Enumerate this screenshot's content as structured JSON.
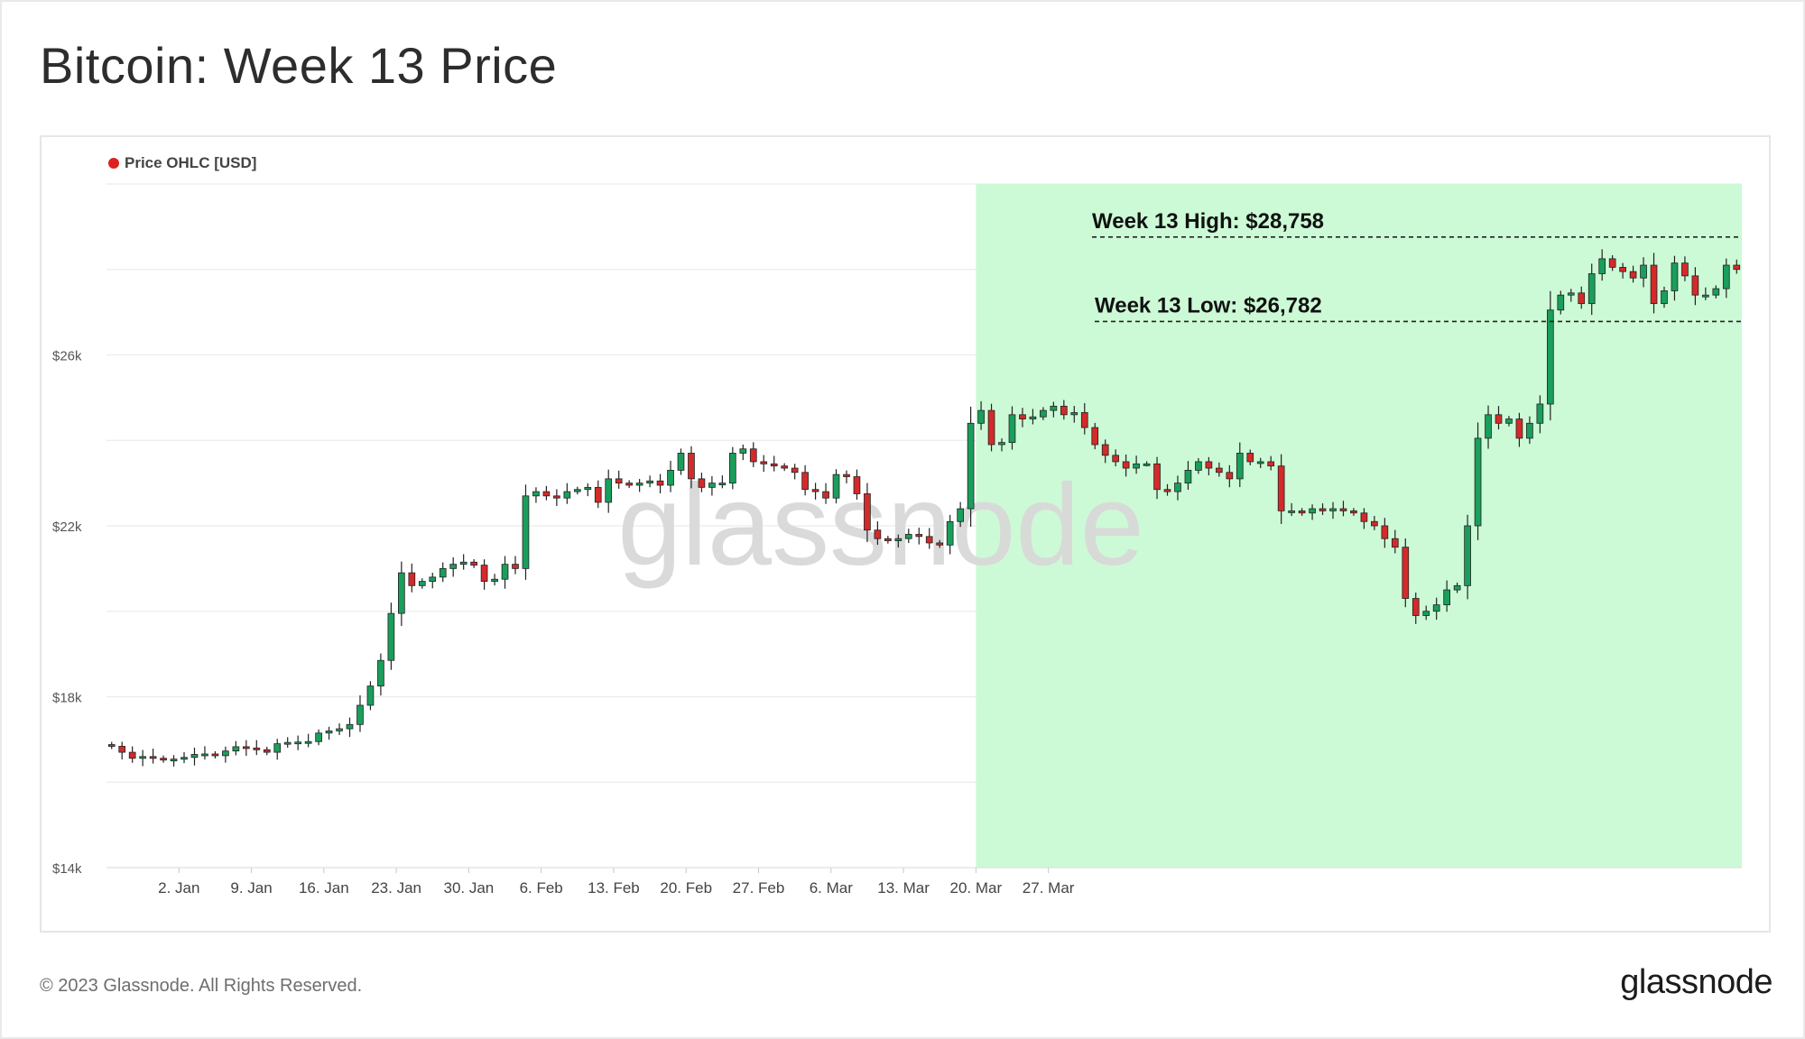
{
  "title": "Bitcoin: Week 13 Price",
  "footer": {
    "copyright": "© 2023 Glassnode. All Rights Reserved.",
    "logo": "glassnode"
  },
  "watermark": "glassnode",
  "colors": {
    "up": "#1a9e5c",
    "down": "#d42a2a",
    "highlight": "#ccfad6",
    "legend_dot": "#e02020",
    "grid": "#ececec"
  },
  "chart_data": {
    "type": "candlestick",
    "legend": "Price OHLC [USD]",
    "legend_position": "top-left",
    "grid": true,
    "y_ticks": [
      {
        "value": 14000,
        "label": "$14k"
      },
      {
        "value": 18000,
        "label": "$18k"
      },
      {
        "value": 22000,
        "label": "$22k"
      },
      {
        "value": 26000,
        "label": "$26k"
      }
    ],
    "ylim": [
      14000,
      30000
    ],
    "x_ticks": [
      "2. Jan",
      "9. Jan",
      "16. Jan",
      "23. Jan",
      "30. Jan",
      "6. Feb",
      "13. Feb",
      "20. Feb",
      "27. Feb",
      "6. Mar",
      "13. Mar",
      "20. Mar",
      "27. Mar"
    ],
    "x_start": "2022-12-26",
    "highlight": {
      "from": "2023-03-20",
      "to": "2023-03-27",
      "label": "Week 13"
    },
    "annotations": [
      {
        "label": "Week 13 High: $28,758",
        "value": 28758
      },
      {
        "label": "Week 13 Low: $26,782",
        "value": 26782
      }
    ],
    "closes": [
      16840,
      16700,
      16560,
      16600,
      16560,
      16520,
      16540,
      16580,
      16650,
      16660,
      16620,
      16730,
      16830,
      16800,
      16760,
      16700,
      16900,
      16930,
      16940,
      16950,
      17150,
      17200,
      17250,
      17350,
      17800,
      18250,
      18850,
      19950,
      20900,
      20600,
      20700,
      20800,
      21000,
      21100,
      21150,
      21080,
      20700,
      20750,
      21100,
      21000,
      22700,
      22800,
      22700,
      22650,
      22800,
      22850,
      22900,
      22550,
      23100,
      23000,
      22950,
      23000,
      23050,
      22950,
      23300,
      23700,
      23100,
      22900,
      23000,
      23000,
      23700,
      23800,
      23500,
      23450,
      23400,
      23350,
      23250,
      22850,
      22800,
      22650,
      23200,
      23150,
      22750,
      21900,
      21700,
      21650,
      21700,
      21800,
      21750,
      21600,
      21550,
      22100,
      22400,
      24400,
      24700,
      23900,
      23950,
      24600,
      24500,
      24550,
      24700,
      24800,
      24600,
      24650,
      24300,
      23900,
      23650,
      23500,
      23350,
      23450,
      23450,
      22850,
      22800,
      23000,
      23300,
      23500,
      23350,
      23250,
      23100,
      23700,
      23500,
      23500,
      23400,
      22350,
      22350,
      22300,
      22400,
      22350,
      22400,
      22350,
      22300,
      22100,
      22000,
      21700,
      21500,
      20300,
      19900,
      20000,
      20150,
      20500,
      20600,
      22000,
      24050,
      24600,
      24400,
      24500,
      24050,
      24400,
      24850,
      27050,
      27400,
      27450,
      27200,
      27900,
      28250,
      28050,
      27950,
      27800,
      28100,
      27200,
      27500,
      28150,
      27850,
      27400,
      27400,
      27550,
      28100,
      28000
    ]
  }
}
